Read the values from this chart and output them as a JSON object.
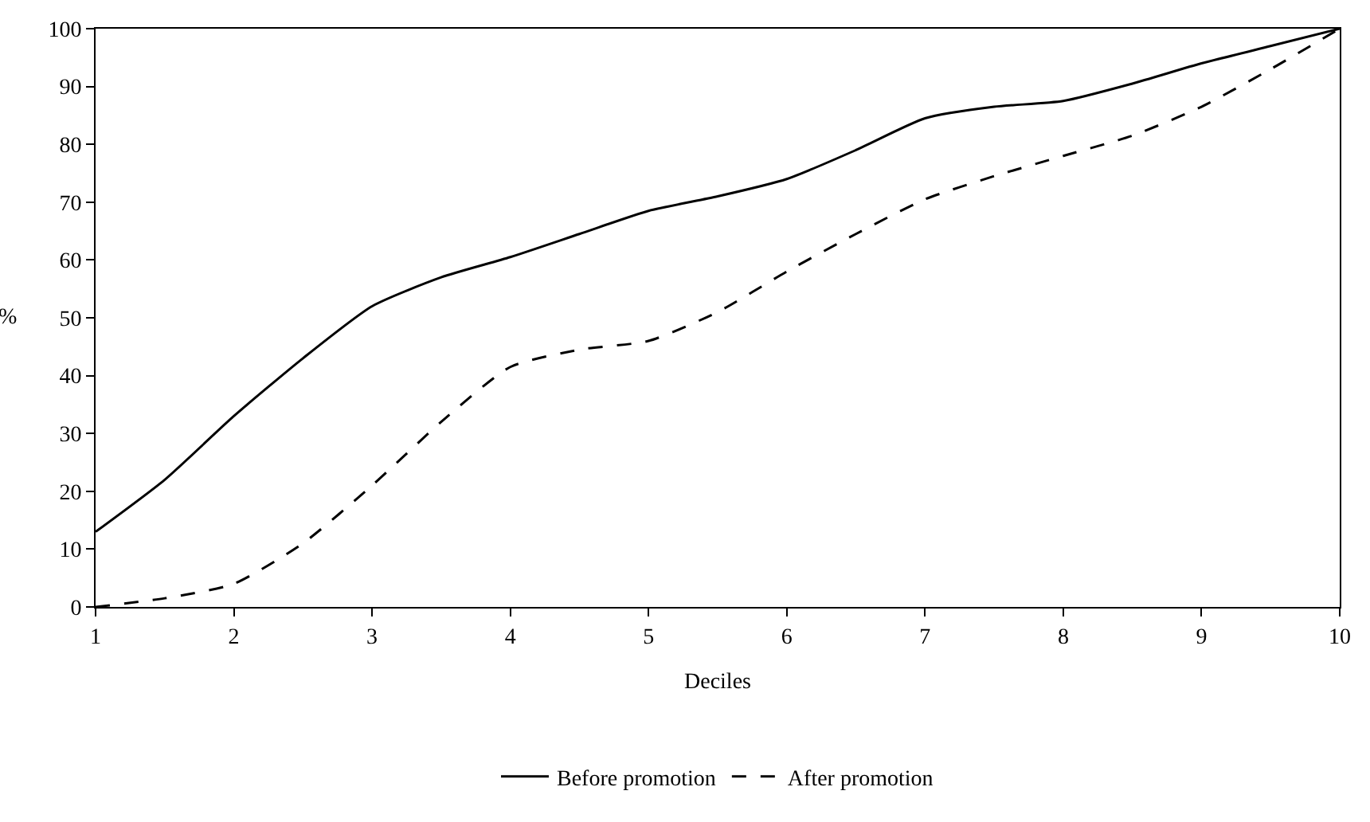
{
  "chart_data": {
    "type": "line",
    "xlabel": "Deciles",
    "ylabel": "%",
    "x": [
      1,
      1.5,
      2,
      2.5,
      3,
      3.5,
      4,
      4.5,
      5,
      5.5,
      6,
      6.5,
      7,
      7.5,
      8,
      8.5,
      9,
      9.5,
      10
    ],
    "series": [
      {
        "name": "Before promotion",
        "color": "#000000",
        "line_style": "solid",
        "values": [
          13,
          22,
          33,
          43,
          52,
          57,
          60.5,
          64.5,
          68.5,
          71,
          74,
          79,
          84.5,
          86.5,
          87.5,
          90.5,
          94,
          97,
          100
        ]
      },
      {
        "name": "After promotion",
        "color": "#000000",
        "line_style": "dashed",
        "values": [
          0,
          1.5,
          4,
          11,
          21,
          32,
          41.5,
          44.5,
          46,
          51,
          58,
          64.5,
          70.5,
          74.5,
          78,
          81.5,
          86.5,
          93,
          100
        ]
      }
    ],
    "xlim": [
      1,
      10
    ],
    "xticks": [
      1,
      2,
      3,
      4,
      5,
      6,
      7,
      8,
      9,
      10
    ],
    "ylim": [
      0,
      100
    ],
    "yticks": [
      0,
      10,
      20,
      30,
      40,
      50,
      60,
      70,
      80,
      90,
      100
    ],
    "legend": "bottom",
    "marker": "none"
  }
}
